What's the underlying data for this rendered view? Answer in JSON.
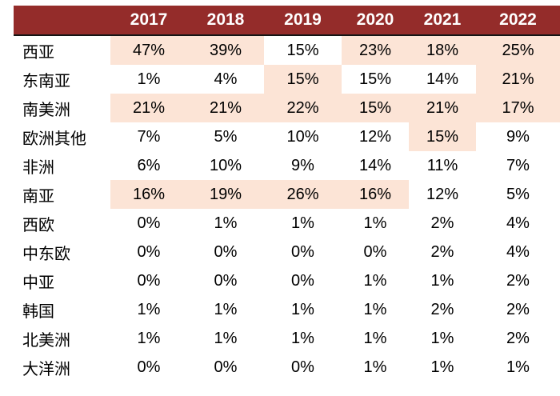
{
  "colors": {
    "header_bg": "#942c2a",
    "header_text": "#ffffff",
    "highlight_bg": "#fce4d6",
    "body_text": "#000000",
    "header_divider": "#151515"
  },
  "chart_data": {
    "type": "table",
    "title": "",
    "unit": "%",
    "corner_label": "",
    "columns": [
      "2017",
      "2018",
      "2019",
      "2020",
      "2021",
      "2022"
    ],
    "rows": [
      {
        "region": "西亚",
        "values_pct": [
          47,
          39,
          15,
          23,
          18,
          25
        ],
        "highlighted": [
          true,
          true,
          false,
          true,
          true,
          true
        ]
      },
      {
        "region": "东南亚",
        "values_pct": [
          1,
          4,
          15,
          15,
          14,
          21
        ],
        "highlighted": [
          false,
          false,
          true,
          false,
          false,
          true
        ]
      },
      {
        "region": "南美洲",
        "values_pct": [
          21,
          21,
          22,
          15,
          21,
          17
        ],
        "highlighted": [
          true,
          true,
          true,
          true,
          true,
          true
        ]
      },
      {
        "region": "欧洲其他",
        "values_pct": [
          7,
          5,
          10,
          12,
          15,
          9
        ],
        "highlighted": [
          false,
          false,
          false,
          false,
          true,
          false
        ]
      },
      {
        "region": "非洲",
        "values_pct": [
          6,
          10,
          9,
          14,
          11,
          7
        ],
        "highlighted": [
          false,
          false,
          false,
          false,
          false,
          false
        ]
      },
      {
        "region": "南亚",
        "values_pct": [
          16,
          19,
          26,
          16,
          12,
          5
        ],
        "highlighted": [
          true,
          true,
          true,
          true,
          false,
          false
        ]
      },
      {
        "region": "西欧",
        "values_pct": [
          0,
          1,
          1,
          1,
          2,
          4
        ],
        "highlighted": [
          false,
          false,
          false,
          false,
          false,
          false
        ]
      },
      {
        "region": "中东欧",
        "values_pct": [
          0,
          0,
          0,
          0,
          2,
          4
        ],
        "highlighted": [
          false,
          false,
          false,
          false,
          false,
          false
        ]
      },
      {
        "region": "中亚",
        "values_pct": [
          0,
          0,
          0,
          1,
          1,
          2
        ],
        "highlighted": [
          false,
          false,
          false,
          false,
          false,
          false
        ]
      },
      {
        "region": "韩国",
        "values_pct": [
          1,
          1,
          1,
          1,
          2,
          2
        ],
        "highlighted": [
          false,
          false,
          false,
          false,
          false,
          false
        ]
      },
      {
        "region": "北美洲",
        "values_pct": [
          1,
          1,
          1,
          1,
          1,
          2
        ],
        "highlighted": [
          false,
          false,
          false,
          false,
          false,
          false
        ]
      },
      {
        "region": "大洋洲",
        "values_pct": [
          0,
          0,
          0,
          1,
          1,
          1
        ],
        "highlighted": [
          false,
          false,
          false,
          false,
          false,
          false
        ]
      }
    ],
    "layout": {
      "legend": "none",
      "grid": "off",
      "highlight_style": "peach cell fill on selected year/region cells"
    }
  }
}
